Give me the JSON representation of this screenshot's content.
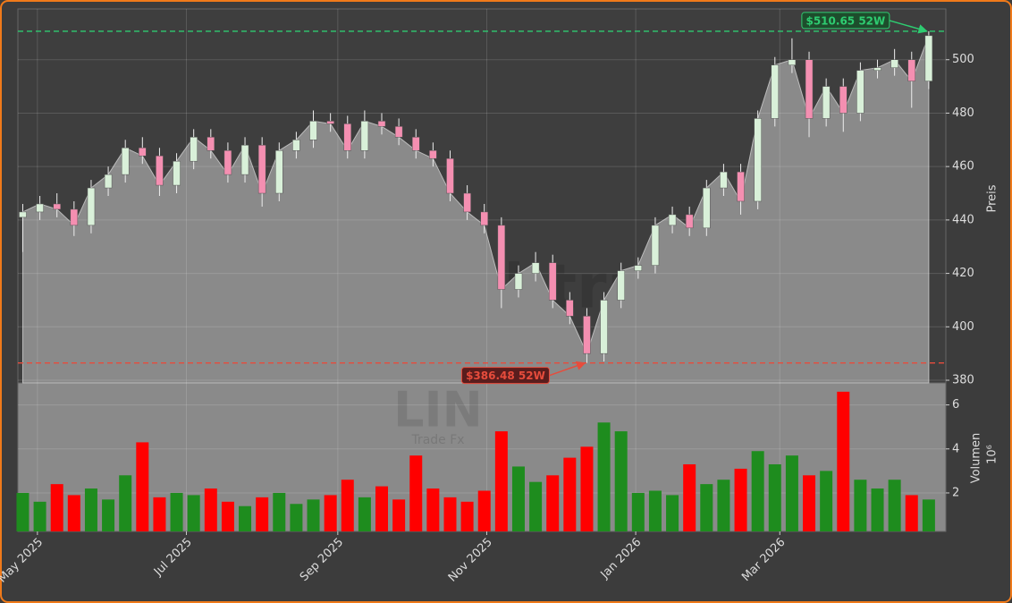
{
  "chart_data": {
    "type": "candlestick",
    "x": [
      "2025-04-25",
      "2025-05-02",
      "2025-05-09",
      "2025-05-16",
      "2025-05-23",
      "2025-05-30",
      "2025-06-06",
      "2025-06-13",
      "2025-06-20",
      "2025-06-27",
      "2025-07-04",
      "2025-07-11",
      "2025-07-18",
      "2025-07-25",
      "2025-08-01",
      "2025-08-08",
      "2025-08-15",
      "2025-08-22",
      "2025-08-29",
      "2025-09-05",
      "2025-09-12",
      "2025-09-19",
      "2025-09-26",
      "2025-10-03",
      "2025-10-10",
      "2025-10-17",
      "2025-10-24",
      "2025-10-31",
      "2025-11-07",
      "2025-11-14",
      "2025-11-21",
      "2025-11-28",
      "2025-12-05",
      "2025-12-12",
      "2025-12-19",
      "2025-12-26",
      "2026-01-02",
      "2026-01-09",
      "2026-01-16",
      "2026-01-23",
      "2026-01-30",
      "2026-02-06",
      "2026-02-13",
      "2026-02-20",
      "2026-02-27",
      "2026-03-06",
      "2026-03-13",
      "2026-03-20",
      "2026-03-27",
      "2026-04-03",
      "2026-04-10",
      "2026-04-17",
      "2026-04-24",
      "2026-05-01"
    ],
    "open": [
      441,
      443,
      446,
      444,
      438,
      452,
      457,
      467,
      464,
      453,
      462,
      471,
      466,
      457,
      468,
      450,
      466,
      470,
      477,
      476,
      466,
      477,
      475,
      471,
      466,
      463,
      450,
      443,
      438,
      414,
      420,
      424,
      410,
      404,
      390,
      410,
      421,
      423,
      438,
      442,
      437,
      452,
      458,
      447,
      478,
      498,
      500,
      478,
      490,
      480,
      496,
      497,
      500,
      492
    ],
    "high": [
      446,
      449,
      450,
      447,
      455,
      460,
      470,
      471,
      467,
      465,
      474,
      474,
      469,
      471,
      471,
      469,
      473,
      481,
      480,
      479,
      481,
      480,
      478,
      474,
      469,
      466,
      453,
      446,
      441,
      423,
      428,
      427,
      413,
      407,
      413,
      424,
      426,
      441,
      445,
      445,
      455,
      461,
      461,
      481,
      501,
      508,
      503,
      493,
      493,
      499,
      500,
      504,
      503,
      510.65
    ],
    "low": [
      428,
      440,
      441,
      434,
      435,
      449,
      454,
      461,
      449,
      450,
      459,
      463,
      454,
      454,
      445,
      447,
      463,
      467,
      473,
      463,
      463,
      472,
      468,
      463,
      460,
      447,
      440,
      435,
      407,
      411,
      417,
      407,
      401,
      386.48,
      387,
      407,
      418,
      420,
      435,
      434,
      434,
      449,
      442,
      444,
      475,
      495,
      471,
      475,
      473,
      477,
      493,
      494,
      482,
      489
    ],
    "close": [
      443,
      446,
      444,
      438,
      452,
      457,
      467,
      464,
      453,
      462,
      471,
      466,
      457,
      468,
      450,
      466,
      470,
      477,
      476,
      466,
      477,
      475,
      471,
      466,
      463,
      450,
      443,
      438,
      414,
      420,
      424,
      410,
      404,
      390,
      410,
      421,
      423,
      438,
      442,
      437,
      452,
      458,
      447,
      478,
      498,
      500,
      478,
      490,
      480,
      496,
      497,
      500,
      492,
      509
    ],
    "up_color": "#d9f0d9",
    "down_color": "#f48fb1",
    "area_color": "#8a8a8a",
    "xlim": [
      "2025-04-23",
      "2026-05-08"
    ],
    "xticks": [
      {
        "value": "2025-05-01",
        "label": "May 2025"
      },
      {
        "value": "2025-07-01",
        "label": "Jul 2025"
      },
      {
        "value": "2025-09-01",
        "label": "Sep 2025"
      },
      {
        "value": "2025-11-01",
        "label": "Nov 2025"
      },
      {
        "value": "2026-01-01",
        "label": "Jan 2026"
      },
      {
        "value": "2026-03-01",
        "label": "Mar 2026"
      }
    ],
    "ylim": [
      379,
      519
    ],
    "yticks": [
      380,
      400,
      420,
      440,
      460,
      480,
      500
    ],
    "ylabel": "Preis",
    "grid": true,
    "annotations": [
      {
        "value": 510.65,
        "label": "$510.65 52W",
        "x": "2026-05-01",
        "color": "#2ecc71"
      },
      {
        "value": 386.48,
        "label": "$386.48 52W",
        "x": "2025-12-12",
        "color": "#e74c3c"
      }
    ],
    "volume": {
      "values": [
        2.0,
        1.6,
        2.4,
        1.9,
        2.2,
        1.7,
        2.8,
        4.3,
        1.8,
        2.0,
        1.9,
        2.2,
        1.6,
        1.4,
        1.8,
        2.0,
        1.5,
        1.7,
        1.9,
        2.6,
        1.8,
        2.3,
        1.7,
        3.7,
        2.2,
        1.8,
        1.6,
        2.1,
        4.8,
        3.2,
        2.5,
        2.8,
        3.6,
        4.1,
        5.2,
        4.8,
        2.0,
        2.1,
        1.9,
        3.3,
        2.4,
        2.6,
        3.1,
        3.9,
        3.3,
        3.7,
        2.8,
        3.0,
        6.6,
        2.6,
        2.2,
        2.6,
        1.9,
        1.7
      ],
      "ylim": [
        0.25,
        7.0
      ],
      "yticks": [
        2,
        4,
        6
      ],
      "ylabel": "Volumen",
      "unit": "10⁶",
      "up_color": "#1e8c1e",
      "down_color": "#ff0000"
    },
    "watermarks": [
      "forexsignal.trade",
      "LIN",
      "Trade Fx"
    ]
  }
}
